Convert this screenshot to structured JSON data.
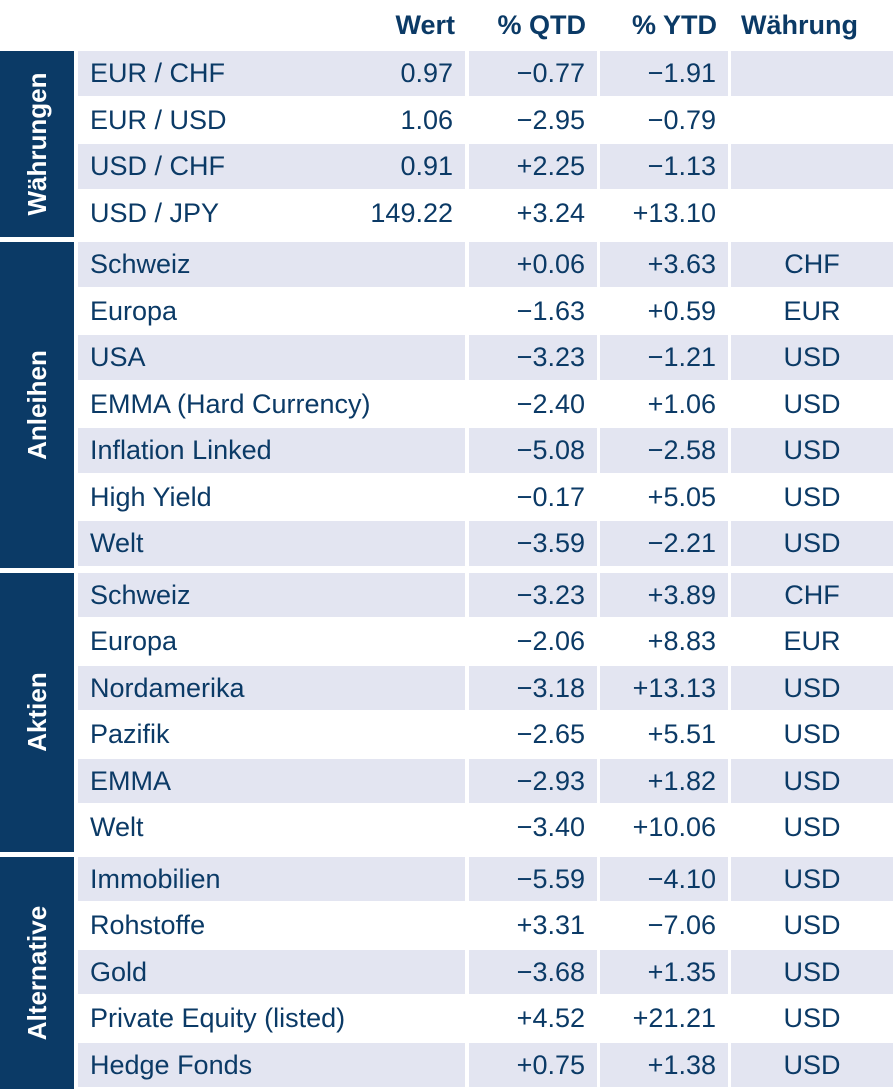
{
  "header": {
    "wert": "Wert",
    "qtd": "% QTD",
    "ytd": "% YTD",
    "currency": "Währung"
  },
  "sections": [
    {
      "label": "Währungen",
      "rows": [
        {
          "name": "EUR / CHF",
          "wert": "0.97",
          "qtd": "−0.77",
          "ytd": "−1.91",
          "ccy": ""
        },
        {
          "name": "EUR / USD",
          "wert": "1.06",
          "qtd": "−2.95",
          "ytd": "−0.79",
          "ccy": ""
        },
        {
          "name": "USD / CHF",
          "wert": "0.91",
          "qtd": "+2.25",
          "ytd": "−1.13",
          "ccy": ""
        },
        {
          "name": "USD / JPY",
          "wert": "149.22",
          "qtd": "+3.24",
          "ytd": "+13.10",
          "ccy": ""
        }
      ]
    },
    {
      "label": "Anleihen",
      "rows": [
        {
          "name": "Schweiz",
          "wert": "",
          "qtd": "+0.06",
          "ytd": "+3.63",
          "ccy": "CHF"
        },
        {
          "name": "Europa",
          "wert": "",
          "qtd": "−1.63",
          "ytd": "+0.59",
          "ccy": "EUR"
        },
        {
          "name": "USA",
          "wert": "",
          "qtd": "−3.23",
          "ytd": "−1.21",
          "ccy": "USD"
        },
        {
          "name": "EMMA (Hard Currency)",
          "wert": "",
          "qtd": "−2.40",
          "ytd": "+1.06",
          "ccy": "USD"
        },
        {
          "name": "Inflation Linked",
          "wert": "",
          "qtd": "−5.08",
          "ytd": "−2.58",
          "ccy": "USD"
        },
        {
          "name": "High Yield",
          "wert": "",
          "qtd": "−0.17",
          "ytd": "+5.05",
          "ccy": "USD"
        },
        {
          "name": "Welt",
          "wert": "",
          "qtd": "−3.59",
          "ytd": "−2.21",
          "ccy": "USD"
        }
      ]
    },
    {
      "label": "Aktien",
      "rows": [
        {
          "name": "Schweiz",
          "wert": "",
          "qtd": "−3.23",
          "ytd": "+3.89",
          "ccy": "CHF"
        },
        {
          "name": "Europa",
          "wert": "",
          "qtd": "−2.06",
          "ytd": "+8.83",
          "ccy": "EUR"
        },
        {
          "name": "Nordamerika",
          "wert": "",
          "qtd": "−3.18",
          "ytd": "+13.13",
          "ccy": "USD"
        },
        {
          "name": "Pazifik",
          "wert": "",
          "qtd": "−2.65",
          "ytd": "+5.51",
          "ccy": "USD"
        },
        {
          "name": "EMMA",
          "wert": "",
          "qtd": "−2.93",
          "ytd": "+1.82",
          "ccy": "USD"
        },
        {
          "name": "Welt",
          "wert": "",
          "qtd": "−3.40",
          "ytd": "+10.06",
          "ccy": "USD"
        }
      ]
    },
    {
      "label": "Alternative",
      "rows": [
        {
          "name": "Immobilien",
          "wert": "",
          "qtd": "−5.59",
          "ytd": "−4.10",
          "ccy": "USD"
        },
        {
          "name": "Rohstoffe",
          "wert": "",
          "qtd": "+3.31",
          "ytd": "−7.06",
          "ccy": "USD"
        },
        {
          "name": "Gold",
          "wert": "",
          "qtd": "−3.68",
          "ytd": "+1.35",
          "ccy": "USD"
        },
        {
          "name": "Private Equity (listed)",
          "wert": "",
          "qtd": "+4.52",
          "ytd": "+21.21",
          "ccy": "USD"
        },
        {
          "name": "Hedge Fonds",
          "wert": "",
          "qtd": "+0.75",
          "ytd": "+1.38",
          "ccy": "USD"
        }
      ]
    }
  ],
  "colors": {
    "navy": "#0b3a66",
    "row_shade": "#e3e5f1",
    "background": "#ffffff"
  }
}
